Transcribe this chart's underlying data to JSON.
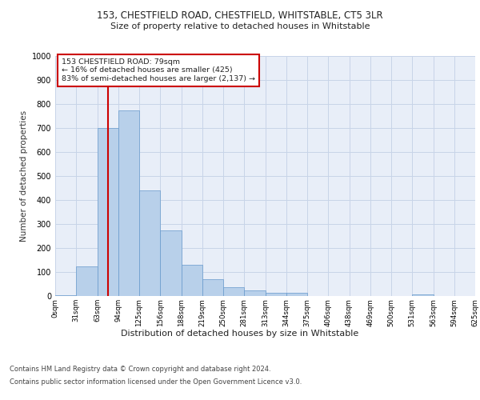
{
  "title1": "153, CHESTFIELD ROAD, CHESTFIELD, WHITSTABLE, CT5 3LR",
  "title2": "Size of property relative to detached houses in Whitstable",
  "xlabel": "Distribution of detached houses by size in Whitstable",
  "ylabel": "Number of detached properties",
  "footer1": "Contains HM Land Registry data © Crown copyright and database right 2024.",
  "footer2": "Contains public sector information licensed under the Open Government Licence v3.0.",
  "bin_labels": [
    "0sqm",
    "31sqm",
    "63sqm",
    "94sqm",
    "125sqm",
    "156sqm",
    "188sqm",
    "219sqm",
    "250sqm",
    "281sqm",
    "313sqm",
    "344sqm",
    "375sqm",
    "406sqm",
    "438sqm",
    "469sqm",
    "500sqm",
    "531sqm",
    "563sqm",
    "594sqm",
    "625sqm"
  ],
  "bar_values": [
    5,
    125,
    700,
    775,
    440,
    275,
    130,
    70,
    38,
    22,
    12,
    12,
    0,
    0,
    0,
    0,
    0,
    8,
    0,
    0,
    0
  ],
  "bar_color": "#b8d0ea",
  "bar_edge_color": "#6699cc",
  "grid_color": "#c8d4e8",
  "vline_x_index": 2.5,
  "vline_color": "#cc0000",
  "annotation_text": "153 CHESTFIELD ROAD: 79sqm\n← 16% of detached houses are smaller (425)\n83% of semi-detached houses are larger (2,137) →",
  "annotation_box_color": "#cc0000",
  "ylim": [
    0,
    1000
  ],
  "yticks": [
    0,
    100,
    200,
    300,
    400,
    500,
    600,
    700,
    800,
    900,
    1000
  ],
  "background_color": "#e8eef8",
  "fig_background": "#ffffff"
}
